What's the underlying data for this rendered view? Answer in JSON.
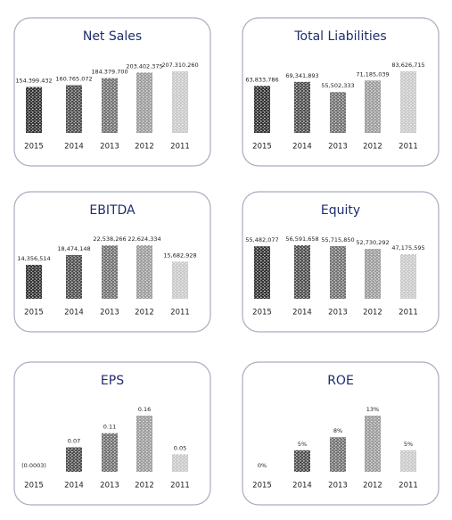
{
  "chart_data": [
    {
      "type": "bar",
      "title": "Net Sales",
      "categories": [
        "2015",
        "2014",
        "2013",
        "2012",
        "2011"
      ],
      "values": [
        154399432,
        160765072,
        184379700,
        203402375,
        207310260
      ],
      "value_labels": [
        "154.399.432",
        "160.765.072",
        "184.379.700",
        "203.402.375",
        "207.310.260"
      ],
      "colors": [
        "#2e2e2e",
        "#4a4a4a",
        "#6e6e6e",
        "#999999",
        "#c8c8c8"
      ]
    },
    {
      "type": "bar",
      "title": "Total Liabilities",
      "categories": [
        "2015",
        "2014",
        "2013",
        "2012",
        "2011"
      ],
      "values": [
        63833786,
        69341893,
        55502333,
        71185039,
        83626715
      ],
      "value_labels": [
        "63,833,786",
        "69,341,893",
        "55,502,333",
        "71,185,039",
        "83,626,715"
      ],
      "colors": [
        "#2e2e2e",
        "#4a4a4a",
        "#6e6e6e",
        "#999999",
        "#c8c8c8"
      ]
    },
    {
      "type": "bar",
      "title": "EBITDA",
      "categories": [
        "2015",
        "2014",
        "2013",
        "2012",
        "2011"
      ],
      "values": [
        14356514,
        18474148,
        22538266,
        22624334,
        15682928
      ],
      "value_labels": [
        "14,356,514",
        "18,474,148",
        "22,538,266",
        "22,624,334",
        "15,682,928"
      ],
      "colors": [
        "#2e2e2e",
        "#4a4a4a",
        "#6e6e6e",
        "#999999",
        "#c8c8c8"
      ]
    },
    {
      "type": "bar",
      "title": "Equity",
      "categories": [
        "2015",
        "2014",
        "2013",
        "2012",
        "2011"
      ],
      "values": [
        55482077,
        56591658,
        55715850,
        52730292,
        47175595
      ],
      "value_labels": [
        "55,482,077",
        "56,591,658",
        "55,715,850",
        "52,730,292",
        "47,175,595"
      ],
      "colors": [
        "#2e2e2e",
        "#4a4a4a",
        "#6e6e6e",
        "#999999",
        "#c8c8c8"
      ]
    },
    {
      "type": "bar",
      "title": "EPS",
      "categories": [
        "2015",
        "2014",
        "2013",
        "2012",
        "2011"
      ],
      "values": [
        -0.0003,
        0.07,
        0.11,
        0.16,
        0.05
      ],
      "value_labels": [
        "(0.0003)",
        "0.07",
        "0.11",
        "0.16",
        "0.05"
      ],
      "colors": [
        "#2e2e2e",
        "#4a4a4a",
        "#6e6e6e",
        "#999999",
        "#c8c8c8"
      ]
    },
    {
      "type": "bar",
      "title": "ROE",
      "categories": [
        "2015",
        "2014",
        "2013",
        "2012",
        "2011"
      ],
      "values": [
        0,
        5,
        8,
        13,
        5
      ],
      "value_labels": [
        "0%",
        "5%",
        "8%",
        "13%",
        "5%"
      ],
      "colors": [
        "#2e2e2e",
        "#4a4a4a",
        "#6e6e6e",
        "#999999",
        "#c8c8c8"
      ]
    }
  ]
}
